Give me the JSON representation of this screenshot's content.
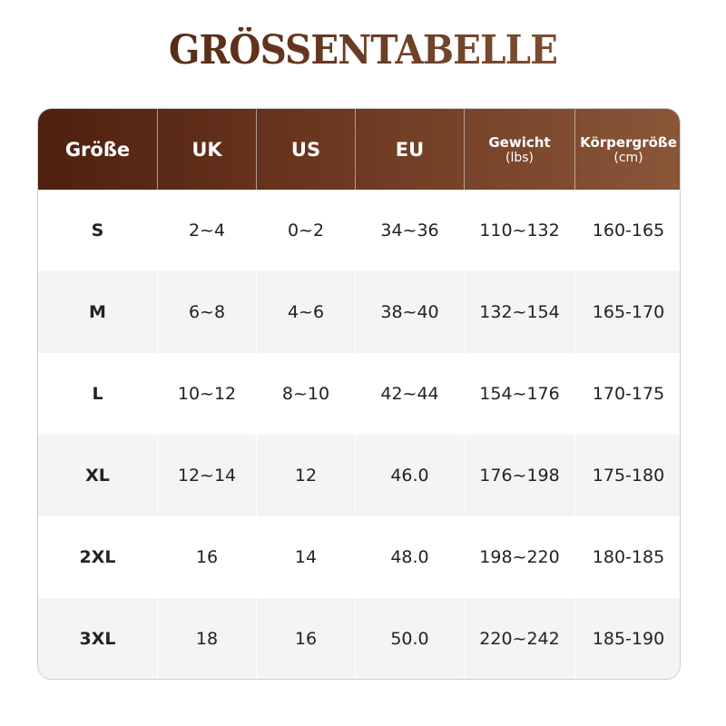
{
  "title": "GRÖSSENTABELLE",
  "colors": {
    "header_dark": "#4f200f",
    "header_light": "#8a5638",
    "row_alt": "#f4f4f4"
  },
  "headers": [
    {
      "label": "Größe",
      "sub": ""
    },
    {
      "label": "UK",
      "sub": ""
    },
    {
      "label": "US",
      "sub": ""
    },
    {
      "label": "EU",
      "sub": ""
    },
    {
      "label": "Gewicht",
      "sub": "(lbs)"
    },
    {
      "label": "Körpergröße",
      "sub": "(cm)"
    }
  ],
  "rows": [
    [
      "S",
      "2~4",
      "0~2",
      "34~36",
      "110~132",
      "160-165"
    ],
    [
      "M",
      "6~8",
      "4~6",
      "38~40",
      "132~154",
      "165-170"
    ],
    [
      "L",
      "10~12",
      "8~10",
      "42~44",
      "154~176",
      "170-175"
    ],
    [
      "XL",
      "12~14",
      "12",
      "46.0",
      "176~198",
      "175-180"
    ],
    [
      "2XL",
      "16",
      "14",
      "48.0",
      "198~220",
      "180-185"
    ],
    [
      "3XL",
      "18",
      "16",
      "50.0",
      "220~242",
      "185-190"
    ]
  ]
}
